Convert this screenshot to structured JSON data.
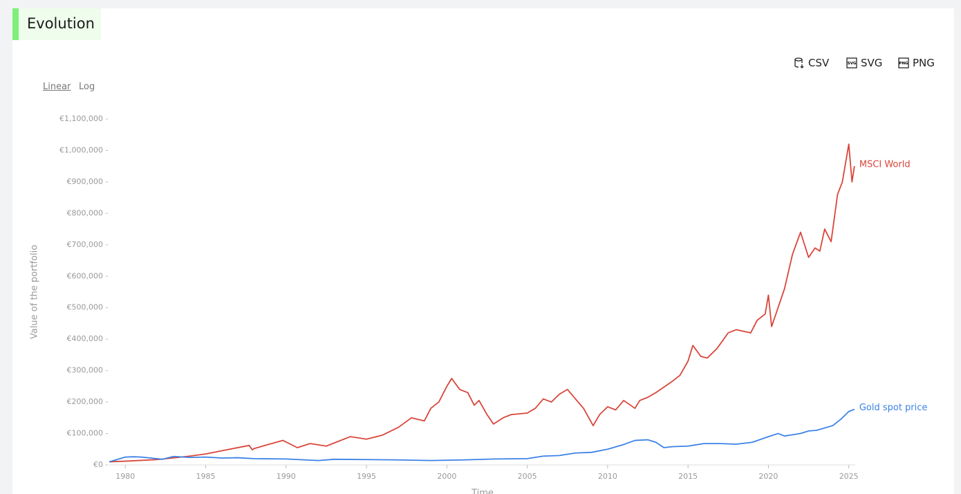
{
  "header": {
    "title": "Evolution"
  },
  "controls": {
    "scale_options": [
      "Linear",
      "Log"
    ],
    "exports": [
      "CSV",
      "SVG",
      "PNG"
    ]
  },
  "chart_data": {
    "type": "line",
    "xlabel": "Time",
    "ylabel": "Value of the portfolio",
    "xlim": [
      1979,
      2025.4
    ],
    "xticks": [
      1980,
      1985,
      1990,
      1995,
      2000,
      2005,
      2010,
      2015,
      2020,
      2025
    ],
    "ylim": [
      0,
      1100000
    ],
    "yticks": [
      {
        "value": 0,
        "label": "€0"
      },
      {
        "value": 100000,
        "label": "€100,000"
      },
      {
        "value": 200000,
        "label": "€200,000"
      },
      {
        "value": 300000,
        "label": "€300,000"
      },
      {
        "value": 400000,
        "label": "€400,000"
      },
      {
        "value": 500000,
        "label": "€500,000"
      },
      {
        "value": 600000,
        "label": "€600,000"
      },
      {
        "value": 700000,
        "label": "€700,000"
      },
      {
        "value": 800000,
        "label": "€800,000"
      },
      {
        "value": 900000,
        "label": "€900,000"
      },
      {
        "value": 1000000,
        "label": "€1,000,000"
      },
      {
        "value": 1100000,
        "label": "€1,100,000"
      }
    ],
    "series": [
      {
        "name": "MSCI World",
        "color": "#d9453a",
        "x": [
          1979,
          1980,
          1982,
          1984,
          1985,
          1986,
          1987.7,
          1987.9,
          1988,
          1989.8,
          1990.7,
          1991.5,
          1992.5,
          1993.5,
          1994,
          1995,
          1996,
          1997,
          1997.8,
          1998.6,
          1999,
          1999.5,
          2000,
          2000.3,
          2000.8,
          2001.3,
          2001.7,
          2002,
          2002.5,
          2002.9,
          2003.5,
          2004,
          2005,
          2005.5,
          2006,
          2006.5,
          2007,
          2007.5,
          2008,
          2008.5,
          2009.1,
          2009.5,
          2010,
          2010.5,
          2011,
          2011.7,
          2012,
          2012.5,
          2013,
          2014,
          2014.5,
          2015,
          2015.3,
          2015.8,
          2016.2,
          2016.8,
          2017.5,
          2018,
          2018.9,
          2019.3,
          2019.8,
          2020,
          2020.2,
          2020.6,
          2021,
          2021.5,
          2022,
          2022.5,
          2022.9,
          2023.2,
          2023.5,
          2023.9,
          2024.3,
          2024.6,
          2025,
          2025.2,
          2025.35
        ],
        "values": [
          10000,
          12000,
          17000,
          28000,
          35000,
          45000,
          62000,
          48000,
          52000,
          78000,
          55000,
          68000,
          60000,
          80000,
          90000,
          82000,
          95000,
          120000,
          150000,
          140000,
          180000,
          200000,
          250000,
          275000,
          240000,
          230000,
          190000,
          205000,
          160000,
          130000,
          150000,
          160000,
          165000,
          180000,
          210000,
          200000,
          225000,
          240000,
          210000,
          180000,
          125000,
          160000,
          185000,
          175000,
          205000,
          180000,
          205000,
          215000,
          230000,
          265000,
          285000,
          330000,
          380000,
          345000,
          340000,
          370000,
          420000,
          430000,
          420000,
          460000,
          480000,
          540000,
          440000,
          500000,
          560000,
          670000,
          740000,
          660000,
          690000,
          680000,
          750000,
          710000,
          860000,
          900000,
          1020000,
          900000,
          950000
        ]
      },
      {
        "name": "Gold spot price",
        "color": "#3b82e6",
        "x": [
          1979,
          1980,
          1980.5,
          1981,
          1982.3,
          1983,
          1984,
          1985,
          1986,
          1987,
          1988,
          1990,
          1992,
          1993,
          1995,
          1997,
          1999,
          2001,
          2003,
          2005,
          2006,
          2007,
          2008,
          2009,
          2010,
          2011,
          2011.7,
          2012.5,
          2013,
          2013.5,
          2014,
          2015,
          2016,
          2017,
          2018,
          2019,
          2020,
          2020.6,
          2021,
          2022,
          2022.5,
          2023,
          2024,
          2024.5,
          2025,
          2025.35
        ],
        "values": [
          10000,
          25000,
          26000,
          25000,
          18000,
          27000,
          24000,
          25000,
          22000,
          23000,
          20000,
          19000,
          14000,
          18000,
          17000,
          16000,
          14000,
          16000,
          19000,
          20000,
          28000,
          30000,
          38000,
          40000,
          50000,
          65000,
          78000,
          80000,
          72000,
          55000,
          58000,
          60000,
          68000,
          68000,
          66000,
          72000,
          90000,
          100000,
          92000,
          100000,
          108000,
          110000,
          125000,
          145000,
          170000,
          177000
        ]
      }
    ]
  }
}
